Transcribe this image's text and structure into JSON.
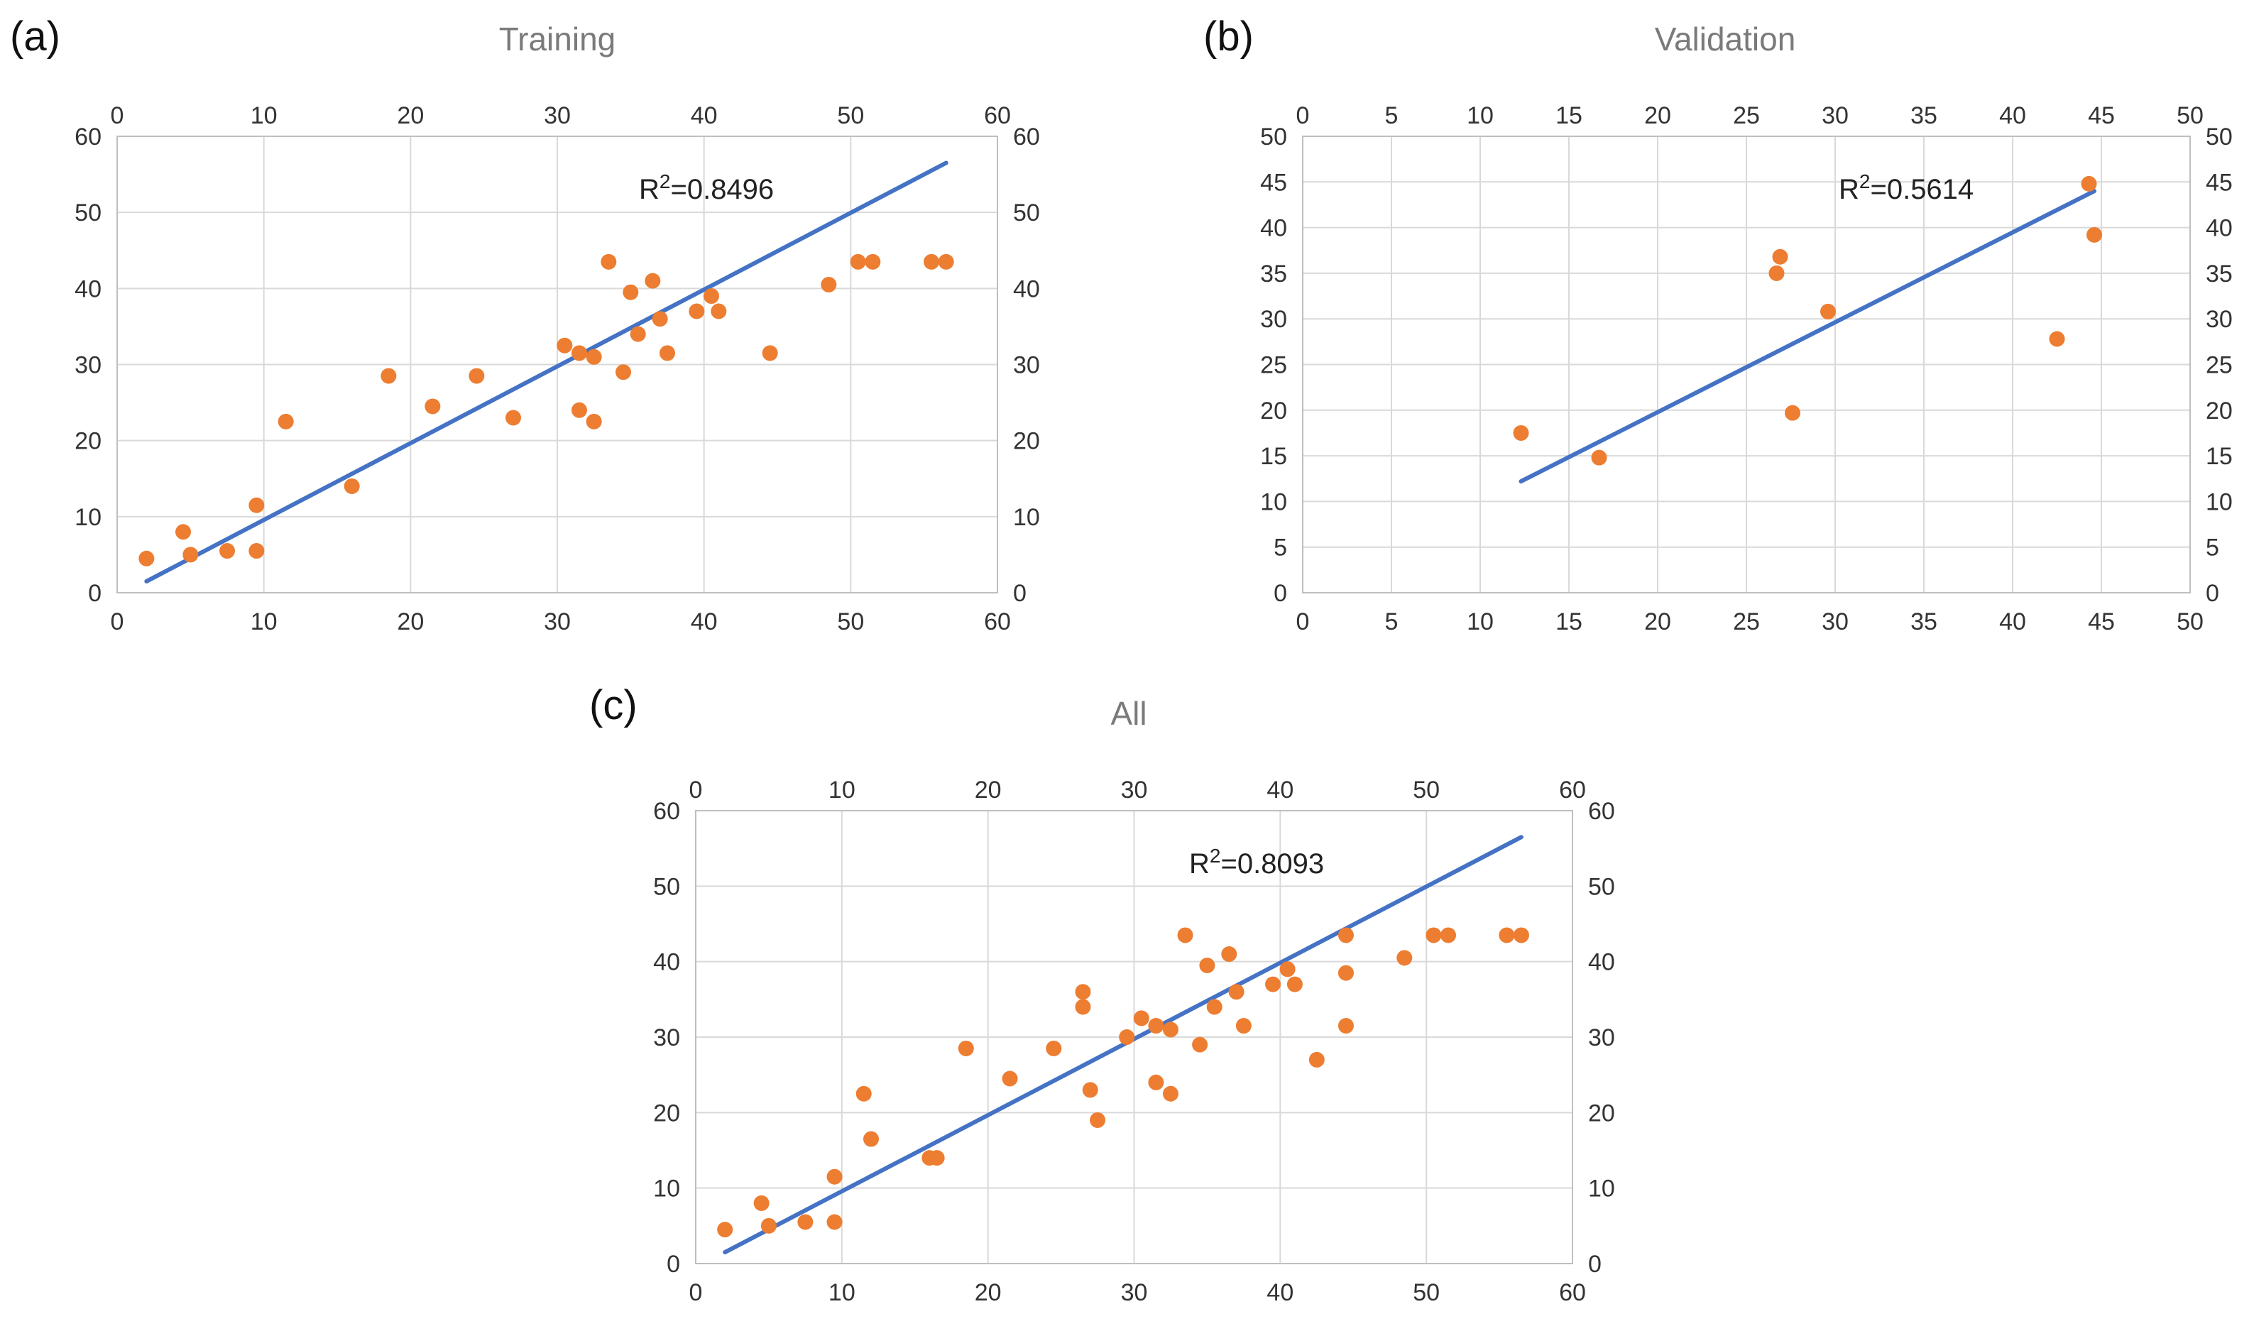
{
  "colors": {
    "points": "#ED7D31",
    "fit_line": "#4472C4",
    "grid": "#D9D9D9",
    "axis": "#BFBFBF"
  },
  "chart_data": [
    {
      "type": "scatter",
      "panel_label": "(a)",
      "title": "Training",
      "annotation": "R2=0.8496",
      "xlim": [
        0,
        60
      ],
      "ylim": [
        0,
        60
      ],
      "xticks": [
        "0",
        "10",
        "20",
        "30",
        "40",
        "50",
        "60"
      ],
      "yticks": [
        "0",
        "10",
        "20",
        "30",
        "40",
        "50",
        "60"
      ],
      "grid": true,
      "points": [
        [
          2,
          4.5
        ],
        [
          4.5,
          8
        ],
        [
          5,
          5
        ],
        [
          7.5,
          5.5
        ],
        [
          9.5,
          5.5
        ],
        [
          9.5,
          11.5
        ],
        [
          11.5,
          22.5
        ],
        [
          16,
          14
        ],
        [
          18.5,
          28.5
        ],
        [
          21.5,
          24.5
        ],
        [
          24.5,
          28.5
        ],
        [
          27,
          23
        ],
        [
          30.5,
          32.5
        ],
        [
          31.5,
          24
        ],
        [
          31.5,
          31.5
        ],
        [
          32.5,
          22.5
        ],
        [
          32.5,
          31
        ],
        [
          33.5,
          43.5
        ],
        [
          34.5,
          29
        ],
        [
          35,
          39.5
        ],
        [
          35.5,
          34
        ],
        [
          36.5,
          41
        ],
        [
          37,
          36
        ],
        [
          37.5,
          31.5
        ],
        [
          39.5,
          37
        ],
        [
          40.5,
          39
        ],
        [
          41,
          37
        ],
        [
          44.5,
          31.5
        ],
        [
          48.5,
          40.5
        ],
        [
          50.5,
          43.5
        ],
        [
          51.5,
          43.5
        ],
        [
          55.5,
          43.5
        ],
        [
          56.5,
          43.5
        ]
      ],
      "fit_line": [
        [
          2,
          1.5
        ],
        [
          56.5,
          56.5
        ]
      ]
    },
    {
      "type": "scatter",
      "panel_label": "(b)",
      "title": "Validation",
      "annotation": "R2=0.5614",
      "xlim": [
        0,
        50
      ],
      "ylim": [
        0,
        50
      ],
      "xticks": [
        "0",
        "5",
        "10",
        "15",
        "20",
        "25",
        "30",
        "35",
        "40",
        "45",
        "50"
      ],
      "yticks": [
        "0",
        "5",
        "10",
        "15",
        "20",
        "25",
        "30",
        "35",
        "40",
        "45",
        "50"
      ],
      "grid": true,
      "points": [
        [
          12.3,
          17.5
        ],
        [
          16.7,
          14.8
        ],
        [
          26.7,
          35
        ],
        [
          26.9,
          36.8
        ],
        [
          27.6,
          19.7
        ],
        [
          29.6,
          30.8
        ],
        [
          42.5,
          27.8
        ],
        [
          44.3,
          44.8
        ],
        [
          44.6,
          39.2
        ]
      ],
      "fit_line": [
        [
          12.3,
          12.2
        ],
        [
          44.6,
          44
        ]
      ]
    },
    {
      "type": "scatter",
      "panel_label": "(c)",
      "title": "All",
      "annotation": "R2=0.8093",
      "xlim": [
        0,
        60
      ],
      "ylim": [
        0,
        60
      ],
      "xticks": [
        "0",
        "10",
        "20",
        "30",
        "40",
        "50",
        "60"
      ],
      "yticks": [
        "0",
        "10",
        "20",
        "30",
        "40",
        "50",
        "60"
      ],
      "grid": true,
      "points": [
        [
          2,
          4.5
        ],
        [
          4.5,
          8
        ],
        [
          5,
          5
        ],
        [
          7.5,
          5.5
        ],
        [
          9.5,
          5.5
        ],
        [
          9.5,
          11.5
        ],
        [
          11.5,
          22.5
        ],
        [
          12,
          16.5
        ],
        [
          16,
          14
        ],
        [
          16.5,
          14
        ],
        [
          18.5,
          28.5
        ],
        [
          21.5,
          24.5
        ],
        [
          24.5,
          28.5
        ],
        [
          26.5,
          34
        ],
        [
          26.5,
          36
        ],
        [
          27,
          23
        ],
        [
          27.5,
          19
        ],
        [
          29.5,
          30
        ],
        [
          30.5,
          32.5
        ],
        [
          31.5,
          24
        ],
        [
          31.5,
          31.5
        ],
        [
          32.5,
          22.5
        ],
        [
          32.5,
          31
        ],
        [
          33.5,
          43.5
        ],
        [
          34.5,
          29
        ],
        [
          35,
          39.5
        ],
        [
          35.5,
          34
        ],
        [
          36.5,
          41
        ],
        [
          37,
          36
        ],
        [
          37.5,
          31.5
        ],
        [
          39.5,
          37
        ],
        [
          40.5,
          39
        ],
        [
          41,
          37
        ],
        [
          42.5,
          27
        ],
        [
          44.5,
          31.5
        ],
        [
          44.5,
          43.5
        ],
        [
          44.5,
          38.5
        ],
        [
          48.5,
          40.5
        ],
        [
          50.5,
          43.5
        ],
        [
          51.5,
          43.5
        ],
        [
          55.5,
          43.5
        ],
        [
          56.5,
          43.5
        ]
      ],
      "fit_line": [
        [
          2,
          1.5
        ],
        [
          56.5,
          56.5
        ]
      ]
    }
  ]
}
